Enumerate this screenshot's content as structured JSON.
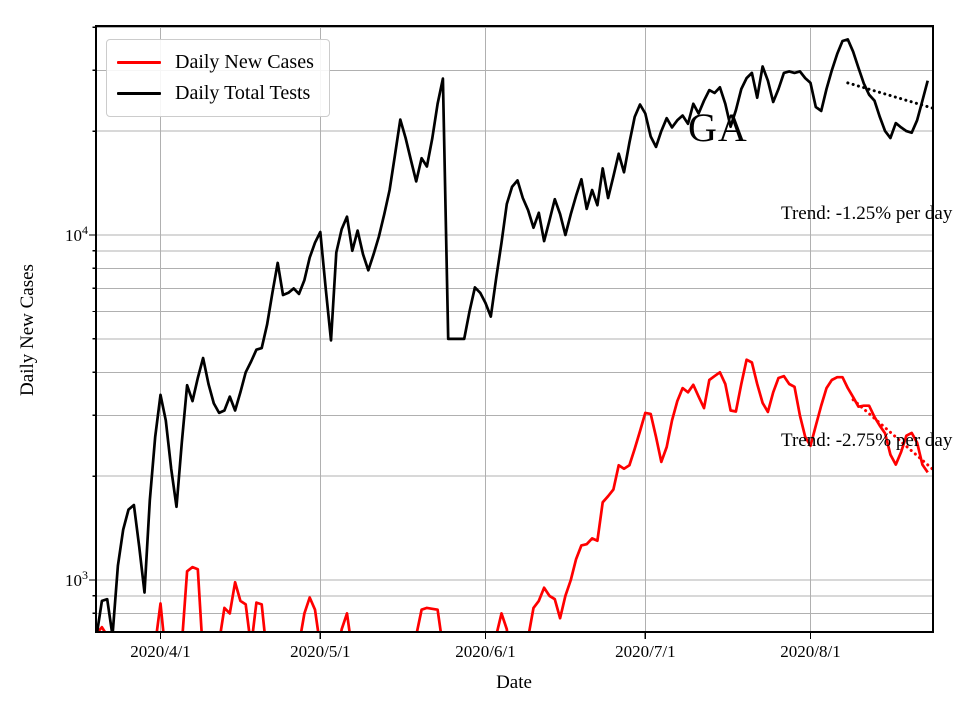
{
  "figure": {
    "background": "#ffffff"
  },
  "legend": {
    "items": [
      {
        "label": "Daily New Cases",
        "color": "#ff0000"
      },
      {
        "label": "Daily Total Tests",
        "color": "#000000"
      }
    ]
  },
  "chart_data": {
    "type": "line",
    "title": "",
    "xlabel": "Date",
    "ylabel": "Daily New Cases",
    "yscale": "log",
    "grid": true,
    "grid_color": "#b0b0b0",
    "legend_position": "upper left",
    "x_domain": [
      "2020-03-20",
      "2020-08-24"
    ],
    "y_domain": [
      707,
      40500
    ],
    "x_ticks": [
      {
        "date": "2020-04-01",
        "label": "2020/4/1"
      },
      {
        "date": "2020-05-01",
        "label": "2020/5/1"
      },
      {
        "date": "2020-06-01",
        "label": "2020/6/1"
      },
      {
        "date": "2020-07-01",
        "label": "2020/7/1"
      },
      {
        "date": "2020-08-01",
        "label": "2020/8/1"
      }
    ],
    "y_ticks": [
      {
        "value": 10000,
        "base": "10",
        "exp": "4"
      },
      {
        "value": 1000,
        "base": "10",
        "exp": "3"
      }
    ],
    "y_grid_values": [
      800,
      900,
      1000,
      2000,
      3000,
      4000,
      5000,
      6000,
      7000,
      8000,
      9000,
      10000,
      20000,
      30000,
      40000
    ],
    "y_major_values": [
      1000,
      10000
    ],
    "annotations": [
      {
        "text": "GA"
      }
    ],
    "series": [
      {
        "name": "Daily New Cases",
        "color": "#ff0000",
        "start_date": "2020-03-20",
        "values": [
          700,
          730,
          690,
          520,
          500,
          520,
          540,
          520,
          500,
          520,
          540,
          650,
          855,
          600,
          520,
          540,
          650,
          1060,
          1090,
          1075,
          600,
          520,
          540,
          660,
          830,
          800,
          985,
          870,
          850,
          640,
          860,
          850,
          600,
          520,
          540,
          520,
          540,
          520,
          650,
          800,
          890,
          820,
          640,
          520,
          540,
          600,
          720,
          800,
          620,
          520,
          540,
          520,
          540,
          520,
          540,
          520,
          540,
          520,
          540,
          600,
          690,
          820,
          830,
          825,
          820,
          640,
          520,
          540,
          520,
          540,
          520,
          540,
          520,
          540,
          600,
          690,
          800,
          720,
          540,
          520,
          560,
          680,
          830,
          870,
          950,
          900,
          880,
          775,
          900,
          1000,
          1150,
          1260,
          1270,
          1320,
          1300,
          1680,
          1750,
          1830,
          2150,
          2100,
          2150,
          2400,
          2700,
          3050,
          3030,
          2600,
          2200,
          2430,
          2900,
          3300,
          3600,
          3500,
          3680,
          3400,
          3150,
          3800,
          3900,
          4000,
          3700,
          3100,
          3080,
          3700,
          4350,
          4270,
          3700,
          3260,
          3070,
          3500,
          3850,
          3900,
          3700,
          3630,
          3000,
          2600,
          2450,
          2800,
          3200,
          3600,
          3800,
          3870,
          3870,
          3600,
          3390,
          3180,
          3200,
          3200,
          2970,
          2800,
          2660,
          2310,
          2160,
          2350,
          2620,
          2670,
          2500,
          2160,
          2050
        ]
      },
      {
        "name": "Daily Total Tests",
        "color": "#000000",
        "start_date": "2020-03-20",
        "values": [
          690,
          870,
          880,
          690,
          1100,
          1400,
          1600,
          1650,
          1250,
          920,
          1700,
          2600,
          3440,
          2900,
          2100,
          1630,
          2500,
          3670,
          3300,
          3850,
          4400,
          3700,
          3250,
          3050,
          3100,
          3400,
          3100,
          3500,
          4000,
          4300,
          4650,
          4700,
          5500,
          6800,
          8300,
          6700,
          6800,
          7000,
          6750,
          7400,
          8600,
          9500,
          10200,
          7000,
          4950,
          8900,
          10400,
          11300,
          9000,
          10300,
          8800,
          7900,
          8800,
          9900,
          11500,
          13500,
          17000,
          21600,
          19100,
          16500,
          14300,
          16700,
          15800,
          19000,
          24000,
          28400,
          5000,
          5000,
          5000,
          5000,
          6000,
          7050,
          6800,
          6350,
          5800,
          7500,
          9500,
          12300,
          13800,
          14400,
          12800,
          11800,
          10500,
          11600,
          9600,
          11000,
          12700,
          11500,
          10000,
          11500,
          13000,
          14500,
          11900,
          13500,
          12200,
          15600,
          12800,
          14800,
          17200,
          15200,
          18500,
          22000,
          23900,
          22500,
          19300,
          18000,
          20000,
          21800,
          20500,
          21500,
          22200,
          21000,
          24000,
          22500,
          24500,
          26300,
          25800,
          26800,
          24000,
          20600,
          23000,
          26500,
          28500,
          29500,
          25000,
          30800,
          28000,
          24300,
          26500,
          29500,
          29800,
          29500,
          29800,
          28500,
          27600,
          23500,
          22900,
          26500,
          30000,
          33500,
          36500,
          36900,
          34000,
          30500,
          27500,
          25500,
          24500,
          22000,
          20000,
          19100,
          21100,
          20500,
          20000,
          19800,
          21500,
          24500,
          28000
        ]
      }
    ],
    "trends": [
      {
        "series": "Daily Total Tests",
        "label": "Trend: -1.25% per day",
        "color": "#000000",
        "start_date": "2020-08-08",
        "start_value": 27600,
        "end_date": "2020-08-24",
        "end_value": 23300
      },
      {
        "series": "Daily New Cases",
        "label": "Trend: -2.75% per day",
        "color": "#ff0000",
        "start_date": "2020-08-09",
        "start_value": 3330,
        "end_date": "2020-08-24",
        "end_value": 2090
      }
    ]
  }
}
